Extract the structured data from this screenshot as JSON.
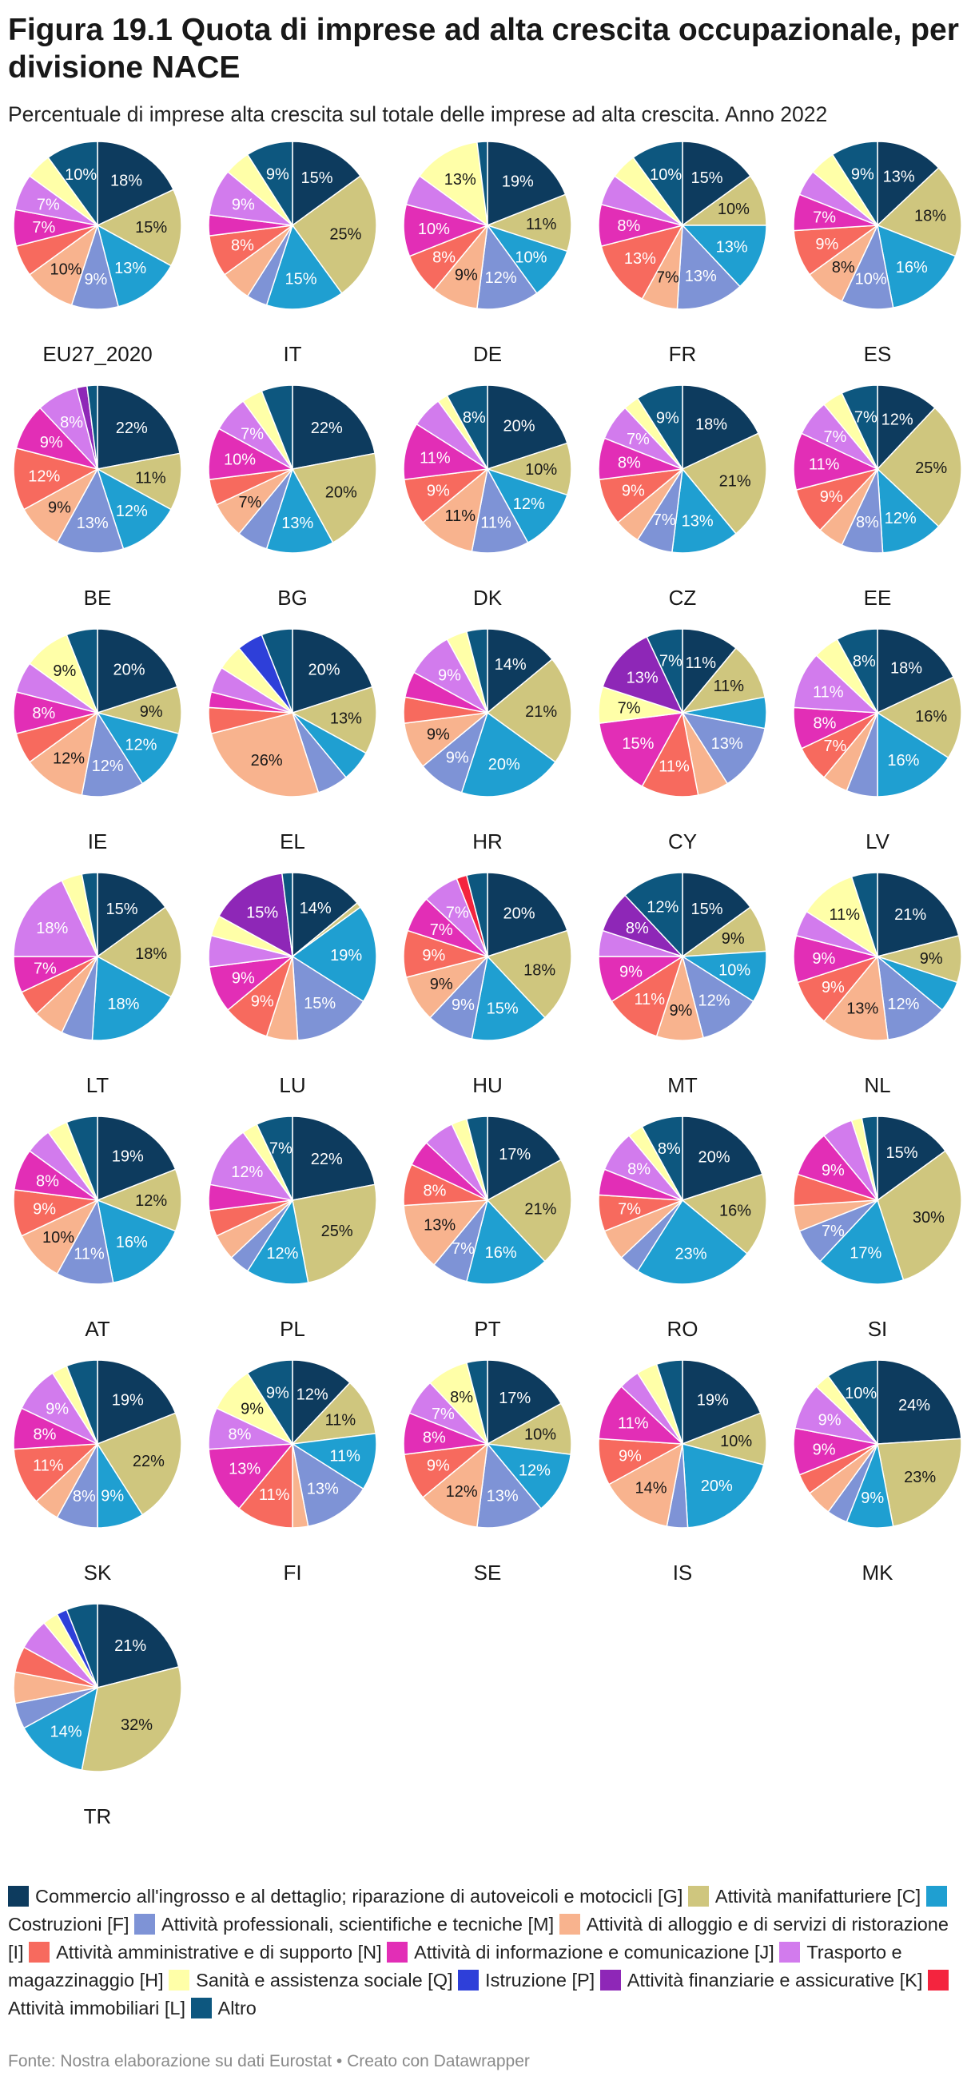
{
  "title": "Figura 19.1 Quota di imprese ad alta crescita occupazionale, per divisione NACE",
  "subtitle": "Percentuale di imprese alta crescita sul totale delle imprese ad alta crescita. Anno 2022",
  "source": "Fonte: Nostra elaborazione su dati Eurostat • Creato con Datawrapper",
  "colors": {
    "G": "#0d3b5e",
    "C": "#cfc67e",
    "F": "#1f9fd1",
    "M": "#7e93d6",
    "I": "#f8b38e",
    "N": "#f76a5e",
    "J": "#e22eb6",
    "H": "#d27bed",
    "Q": "#ffffa8",
    "P": "#2e3fd9",
    "K": "#8e27b7",
    "L": "#f4243e",
    "O": "#0d577f"
  },
  "legend": [
    {
      "key": "G",
      "label": "Commercio all'ingrosso e al dettaglio; riparazione di autoveicoli e motocicli [G]"
    },
    {
      "key": "C",
      "label": "Attività manifatturiere [C]"
    },
    {
      "key": "F",
      "label": "Costruzioni [F]"
    },
    {
      "key": "M",
      "label": "Attività professionali, scientifiche e tecniche [M]"
    },
    {
      "key": "I",
      "label": "Attività di alloggio e di servizi di ristorazione [I]"
    },
    {
      "key": "N",
      "label": "Attività amministrative e di supporto [N]"
    },
    {
      "key": "J",
      "label": "Attività di informazione e comunicazione [J]"
    },
    {
      "key": "H",
      "label": "Trasporto e magazzinaggio [H]"
    },
    {
      "key": "Q",
      "label": "Sanità e assistenza sociale [Q]"
    },
    {
      "key": "P",
      "label": "Istruzione [P]"
    },
    {
      "key": "K",
      "label": "Attività finanziarie e assicurative [K]"
    },
    {
      "key": "L",
      "label": "Attività immobiliari [L]"
    },
    {
      "key": "O",
      "label": "Altro"
    }
  ],
  "chart_data": {
    "type": "pie",
    "unit": "%",
    "series_order": [
      "G",
      "C",
      "F",
      "M",
      "I",
      "N",
      "J",
      "H",
      "Q",
      "P",
      "K",
      "L",
      "O"
    ],
    "label_threshold": 7,
    "charts": [
      {
        "name": "EU27_2020",
        "values": {
          "G": 18,
          "C": 15,
          "F": 13,
          "M": 9,
          "I": 10,
          "N": 6,
          "J": 7,
          "H": 7,
          "Q": 5,
          "O": 10
        }
      },
      {
        "name": "IT",
        "values": {
          "G": 15,
          "C": 25,
          "F": 15,
          "M": 4,
          "I": 6,
          "N": 8,
          "J": 4,
          "H": 9,
          "Q": 5,
          "O": 9
        }
      },
      {
        "name": "DE",
        "values": {
          "G": 19,
          "C": 11,
          "F": 10,
          "M": 12,
          "I": 9,
          "N": 8,
          "J": 10,
          "H": 6,
          "Q": 13,
          "O": 2
        }
      },
      {
        "name": "FR",
        "values": {
          "G": 15,
          "C": 10,
          "F": 13,
          "M": 13,
          "I": 7,
          "N": 13,
          "J": 8,
          "H": 6,
          "Q": 5,
          "O": 10
        }
      },
      {
        "name": "ES",
        "values": {
          "G": 13,
          "C": 18,
          "F": 16,
          "M": 10,
          "I": 8,
          "N": 9,
          "J": 7,
          "H": 5,
          "Q": 5,
          "O": 9
        }
      },
      {
        "name": "BE",
        "values": {
          "G": 22,
          "C": 11,
          "F": 12,
          "M": 13,
          "I": 9,
          "N": 12,
          "J": 9,
          "H": 8,
          "K": 2,
          "O": 2
        }
      },
      {
        "name": "BG",
        "values": {
          "G": 22,
          "C": 20,
          "F": 13,
          "M": 6,
          "I": 7,
          "N": 5,
          "J": 10,
          "H": 7,
          "Q": 4,
          "O": 6
        }
      },
      {
        "name": "DK",
        "values": {
          "G": 20,
          "C": 10,
          "F": 12,
          "M": 11,
          "I": 11,
          "N": 9,
          "J": 11,
          "H": 6,
          "Q": 2,
          "O": 8
        }
      },
      {
        "name": "CZ",
        "values": {
          "G": 18,
          "C": 21,
          "F": 13,
          "M": 7,
          "I": 5,
          "N": 9,
          "J": 8,
          "H": 7,
          "Q": 3,
          "O": 9
        }
      },
      {
        "name": "EE",
        "values": {
          "G": 12,
          "C": 25,
          "F": 12,
          "M": 8,
          "I": 5,
          "N": 9,
          "J": 11,
          "H": 7,
          "Q": 4,
          "O": 7
        }
      },
      {
        "name": "IE",
        "values": {
          "G": 20,
          "C": 9,
          "F": 12,
          "M": 12,
          "I": 12,
          "N": 6,
          "J": 8,
          "H": 6,
          "Q": 9,
          "O": 6
        }
      },
      {
        "name": "EL",
        "values": {
          "G": 20,
          "C": 13,
          "F": 6,
          "M": 6,
          "I": 26,
          "N": 5,
          "J": 3,
          "H": 5,
          "Q": 5,
          "P": 5,
          "O": 6
        }
      },
      {
        "name": "HR",
        "values": {
          "G": 14,
          "C": 21,
          "F": 20,
          "M": 9,
          "I": 9,
          "N": 5,
          "J": 5,
          "H": 9,
          "Q": 4,
          "O": 4
        }
      },
      {
        "name": "CY",
        "values": {
          "G": 11,
          "C": 11,
          "F": 6,
          "M": 13,
          "I": 6,
          "N": 11,
          "J": 15,
          "Q": 7,
          "K": 13,
          "O": 7
        }
      },
      {
        "name": "LV",
        "values": {
          "G": 18,
          "C": 16,
          "F": 16,
          "M": 6,
          "I": 5,
          "N": 7,
          "J": 8,
          "H": 11,
          "Q": 5,
          "O": 8
        }
      },
      {
        "name": "LT",
        "values": {
          "G": 15,
          "C": 18,
          "F": 18,
          "M": 6,
          "I": 6,
          "N": 5,
          "J": 7,
          "H": 18,
          "Q": 4,
          "O": 3
        }
      },
      {
        "name": "LU",
        "values": {
          "G": 14,
          "C": 1,
          "F": 19,
          "M": 15,
          "I": 6,
          "N": 9,
          "J": 9,
          "H": 6,
          "Q": 4,
          "K": 15,
          "O": 2
        }
      },
      {
        "name": "HU",
        "values": {
          "G": 20,
          "C": 18,
          "F": 15,
          "M": 9,
          "I": 9,
          "N": 9,
          "J": 7,
          "H": 7,
          "L": 2,
          "O": 4
        }
      },
      {
        "name": "MT",
        "values": {
          "G": 15,
          "C": 9,
          "F": 10,
          "M": 12,
          "I": 9,
          "N": 11,
          "J": 9,
          "H": 5,
          "K": 8,
          "O": 12
        }
      },
      {
        "name": "NL",
        "values": {
          "G": 21,
          "C": 9,
          "F": 6,
          "M": 12,
          "I": 13,
          "N": 9,
          "J": 9,
          "H": 5,
          "Q": 11,
          "O": 5
        }
      },
      {
        "name": "AT",
        "values": {
          "G": 19,
          "C": 12,
          "F": 16,
          "M": 11,
          "I": 10,
          "N": 9,
          "J": 8,
          "H": 5,
          "Q": 4,
          "O": 6
        }
      },
      {
        "name": "PL",
        "values": {
          "G": 22,
          "C": 25,
          "F": 12,
          "M": 4,
          "I": 5,
          "N": 5,
          "J": 5,
          "H": 12,
          "Q": 3,
          "O": 7
        }
      },
      {
        "name": "PT",
        "values": {
          "G": 17,
          "C": 21,
          "F": 16,
          "M": 7,
          "I": 13,
          "N": 8,
          "J": 5,
          "H": 6,
          "Q": 3,
          "O": 4
        }
      },
      {
        "name": "RO",
        "values": {
          "G": 20,
          "C": 16,
          "F": 23,
          "M": 4,
          "I": 6,
          "N": 7,
          "J": 5,
          "H": 8,
          "Q": 3,
          "O": 8
        }
      },
      {
        "name": "SI",
        "values": {
          "G": 15,
          "C": 30,
          "F": 17,
          "M": 7,
          "I": 5,
          "N": 6,
          "J": 9,
          "H": 6,
          "Q": 2,
          "O": 3
        }
      },
      {
        "name": "SK",
        "values": {
          "G": 19,
          "C": 22,
          "F": 9,
          "M": 8,
          "I": 5,
          "N": 11,
          "J": 8,
          "H": 9,
          "Q": 3,
          "O": 6
        }
      },
      {
        "name": "FI",
        "values": {
          "G": 12,
          "C": 11,
          "F": 11,
          "M": 13,
          "I": 3,
          "N": 11,
          "J": 13,
          "H": 8,
          "Q": 9,
          "O": 9
        }
      },
      {
        "name": "SE",
        "values": {
          "G": 17,
          "C": 10,
          "F": 12,
          "M": 13,
          "I": 12,
          "N": 9,
          "J": 8,
          "H": 7,
          "Q": 8,
          "O": 4
        }
      },
      {
        "name": "IS",
        "values": {
          "G": 19,
          "C": 10,
          "F": 20,
          "M": 4,
          "I": 14,
          "N": 9,
          "J": 11,
          "H": 4,
          "Q": 4,
          "O": 5
        }
      },
      {
        "name": "MK",
        "values": {
          "G": 24,
          "C": 23,
          "F": 9,
          "M": 4,
          "I": 5,
          "N": 4,
          "J": 9,
          "H": 9,
          "Q": 3,
          "O": 10
        }
      },
      {
        "name": "TR",
        "values": {
          "G": 21,
          "C": 32,
          "F": 14,
          "M": 5,
          "I": 6,
          "N": 5,
          "H": 6,
          "Q": 3,
          "P": 2,
          "O": 6
        }
      }
    ]
  }
}
